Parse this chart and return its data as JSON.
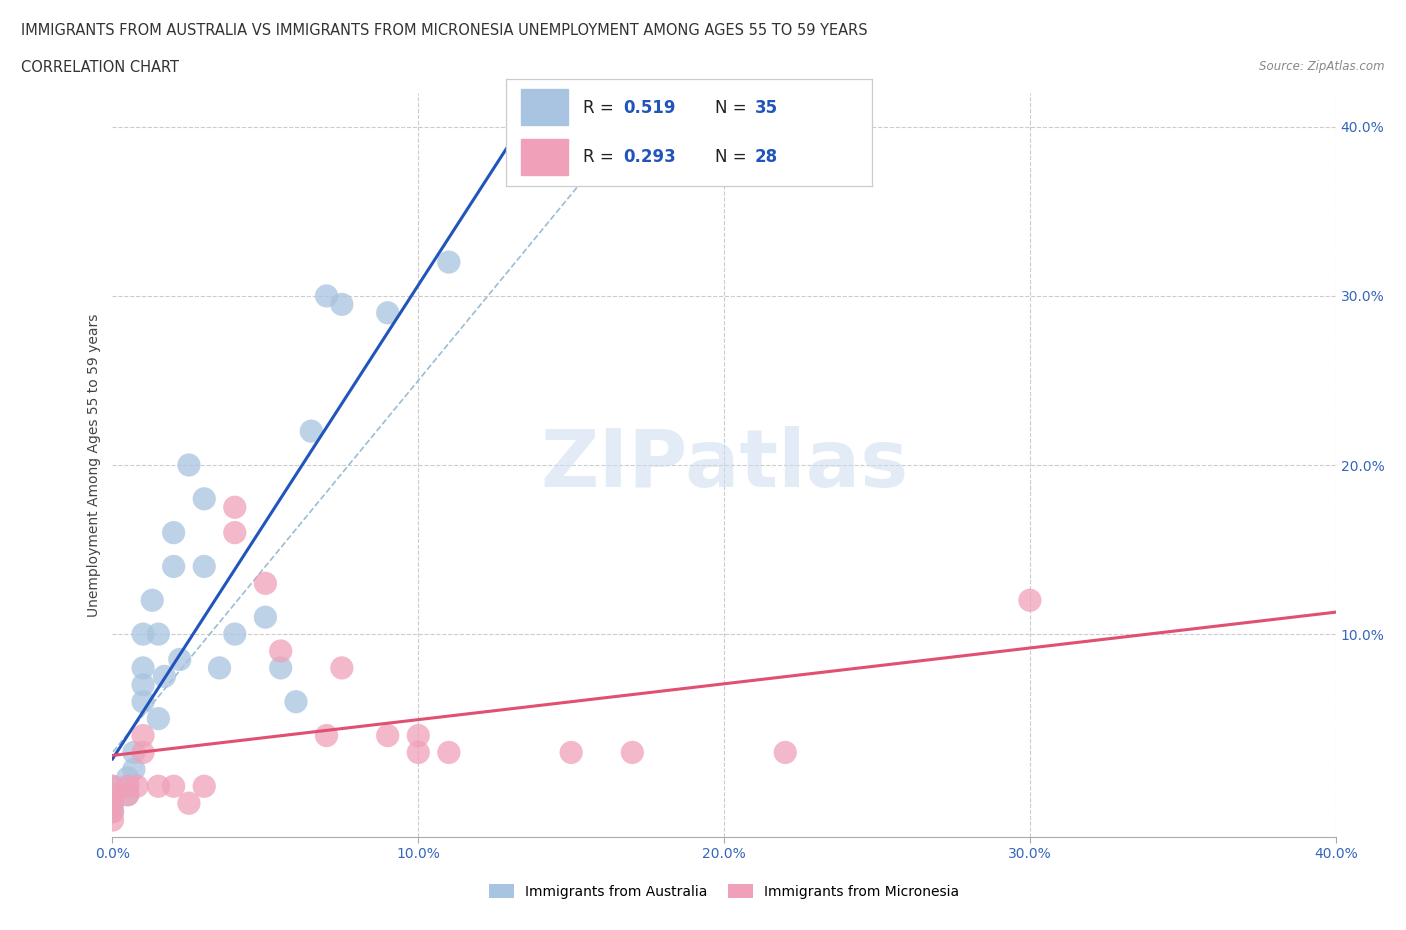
{
  "title_line1": "IMMIGRANTS FROM AUSTRALIA VS IMMIGRANTS FROM MICRONESIA UNEMPLOYMENT AMONG AGES 55 TO 59 YEARS",
  "title_line2": "CORRELATION CHART",
  "source_text": "Source: ZipAtlas.com",
  "ylabel": "Unemployment Among Ages 55 to 59 years",
  "xlim": [
    0.0,
    0.4
  ],
  "ylim": [
    -0.02,
    0.42
  ],
  "xtick_labels": [
    "0.0%",
    "10.0%",
    "20.0%",
    "30.0%",
    "40.0%"
  ],
  "xtick_vals": [
    0.0,
    0.1,
    0.2,
    0.3,
    0.4
  ],
  "ytick_labels": [
    "10.0%",
    "20.0%",
    "30.0%",
    "40.0%"
  ],
  "ytick_vals": [
    0.1,
    0.2,
    0.3,
    0.4
  ],
  "australia_color": "#a8c4e0",
  "micronesia_color": "#f0a0b8",
  "australia_line_color": "#2255bb",
  "micronesia_line_color": "#e05070",
  "diag_dash_color": "#9bbdd4",
  "R_australia": 0.519,
  "N_australia": 35,
  "R_micronesia": 0.293,
  "N_micronesia": 28,
  "watermark_text": "ZIPatlas",
  "legend_label_australia": "Immigrants from Australia",
  "legend_label_micronesia": "Immigrants from Micronesia",
  "australia_x": [
    0.0,
    0.0,
    0.0,
    0.0,
    0.0,
    0.0,
    0.005,
    0.005,
    0.005,
    0.007,
    0.007,
    0.01,
    0.01,
    0.01,
    0.01,
    0.013,
    0.015,
    0.015,
    0.017,
    0.02,
    0.02,
    0.022,
    0.025,
    0.03,
    0.03,
    0.035,
    0.04,
    0.05,
    0.055,
    0.06,
    0.065,
    0.07,
    0.075,
    0.09,
    0.11
  ],
  "australia_y": [
    -0.005,
    0.0,
    0.0,
    0.005,
    0.005,
    0.01,
    0.005,
    0.01,
    0.015,
    0.02,
    0.03,
    0.06,
    0.07,
    0.08,
    0.1,
    0.12,
    0.05,
    0.1,
    0.075,
    0.14,
    0.16,
    0.085,
    0.2,
    0.14,
    0.18,
    0.08,
    0.1,
    0.11,
    0.08,
    0.06,
    0.22,
    0.3,
    0.295,
    0.29,
    0.32
  ],
  "micronesia_x": [
    0.0,
    0.0,
    0.0,
    0.0,
    0.0,
    0.005,
    0.005,
    0.008,
    0.01,
    0.01,
    0.015,
    0.02,
    0.025,
    0.03,
    0.04,
    0.04,
    0.05,
    0.055,
    0.07,
    0.075,
    0.09,
    0.1,
    0.1,
    0.11,
    0.15,
    0.17,
    0.22,
    0.3
  ],
  "micronesia_y": [
    -0.01,
    -0.005,
    0.0,
    0.005,
    0.01,
    0.005,
    0.01,
    0.01,
    0.03,
    0.04,
    0.01,
    0.01,
    0.0,
    0.01,
    0.16,
    0.175,
    0.13,
    0.09,
    0.04,
    0.08,
    0.04,
    0.04,
    0.03,
    0.03,
    0.03,
    0.03,
    0.03,
    0.12
  ]
}
